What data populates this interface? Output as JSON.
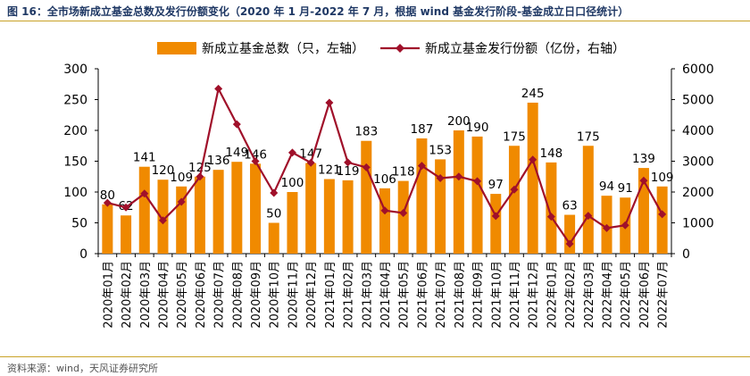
{
  "header": {
    "title": "图 16：全市场新成立基金总数及发行份额变化（2020 年 1 月-2022 年 7 月，根据 wind 基金发行阶段-基金成立日口径统计）"
  },
  "footer": {
    "source": "资料来源：wind，天风证券研究所"
  },
  "colors": {
    "bar": "#f08a00",
    "line": "#a0102a",
    "title": "#1f3864",
    "rule": "#c9a227"
  },
  "chart_data": {
    "type": "bar",
    "categories": [
      "2020年01月",
      "2020年02月",
      "2020年03月",
      "2020年04月",
      "2020年05月",
      "2020年06月",
      "2020年07月",
      "2020年08月",
      "2020年09月",
      "2020年10月",
      "2020年11月",
      "2020年12月",
      "2021年01月",
      "2021年02月",
      "2021年03月",
      "2021年04月",
      "2021年05月",
      "2021年06月",
      "2021年07月",
      "2021年08月",
      "2021年09月",
      "2021年10月",
      "2021年11月",
      "2021年12月",
      "2022年01月",
      "2022年02月",
      "2022年03月",
      "2022年04月",
      "2022年05月",
      "2022年06月",
      "2022年07月"
    ],
    "series": [
      {
        "name": "新成立基金总数（只，左轴）",
        "type": "bar",
        "axis": "left",
        "values": [
          80,
          62,
          141,
          120,
          109,
          125,
          136,
          149,
          146,
          50,
          100,
          147,
          121,
          119,
          183,
          106,
          118,
          187,
          153,
          200,
          190,
          97,
          175,
          245,
          148,
          63,
          175,
          94,
          91,
          139,
          109
        ]
      },
      {
        "name": "新成立基金发行份额（亿份，右轴）",
        "type": "line",
        "axis": "right",
        "values": [
          1650,
          1500,
          1950,
          1080,
          1680,
          2500,
          5350,
          4200,
          3000,
          1970,
          3280,
          2950,
          4900,
          2960,
          2800,
          1400,
          1320,
          2850,
          2450,
          2500,
          2350,
          1220,
          2080,
          3050,
          1200,
          320,
          1230,
          830,
          920,
          2370,
          1280
        ]
      }
    ],
    "ylim_left": [
      0,
      300
    ],
    "yticks_left": [
      0,
      50,
      100,
      150,
      200,
      250,
      300
    ],
    "ylim_right": [
      0,
      6000
    ],
    "yticks_right": [
      0,
      1000,
      2000,
      3000,
      4000,
      5000,
      6000
    ],
    "data_labels": "bar values",
    "legend": "top"
  }
}
